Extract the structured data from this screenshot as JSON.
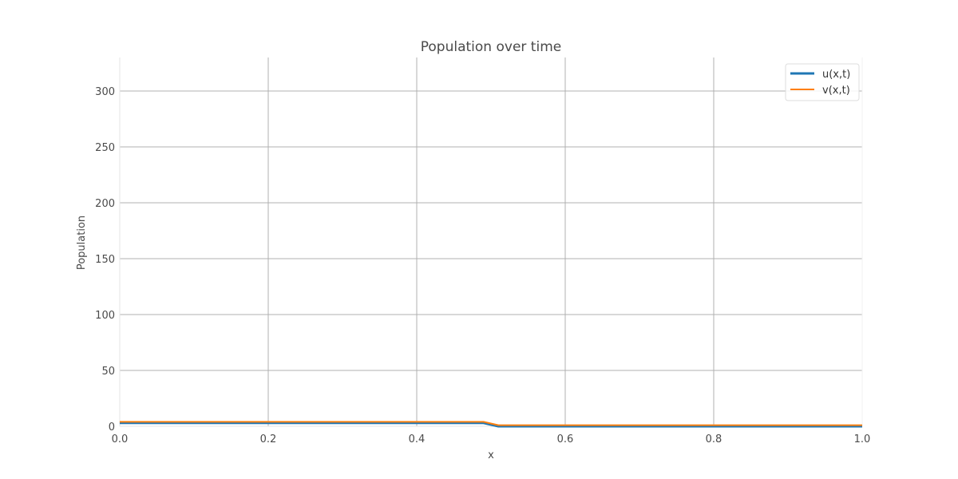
{
  "chart_data": {
    "type": "line",
    "title": "Population over time",
    "xlabel": "x",
    "ylabel": "Population",
    "xlim": [
      0.0,
      1.0
    ],
    "ylim": [
      0,
      330
    ],
    "xticks": [
      0.0,
      0.2,
      0.4,
      0.6,
      0.8,
      1.0
    ],
    "xtick_labels": [
      "0.0",
      "0.2",
      "0.4",
      "0.6",
      "0.8",
      "1.0"
    ],
    "yticks": [
      0,
      50,
      100,
      150,
      200,
      250,
      300
    ],
    "ytick_labels": [
      "0",
      "50",
      "100",
      "150",
      "200",
      "250",
      "300"
    ],
    "grid": true,
    "legend_position": "top-right",
    "series": [
      {
        "name": "u(x,t)",
        "color": "#1f77b4",
        "x": [
          0.0,
          0.1,
          0.2,
          0.3,
          0.4,
          0.49,
          0.51,
          0.6,
          0.7,
          0.8,
          0.9,
          1.0
        ],
        "y": [
          3,
          3,
          3,
          3,
          3,
          3,
          0,
          0,
          0,
          0,
          0,
          0
        ]
      },
      {
        "name": "v(x,t)",
        "color": "#ff7f0e",
        "x": [
          0.0,
          0.1,
          0.2,
          0.3,
          0.4,
          0.49,
          0.51,
          0.6,
          0.7,
          0.8,
          0.9,
          1.0
        ],
        "y": [
          4,
          4,
          4,
          4,
          4,
          4,
          1,
          1,
          1,
          1,
          1,
          1
        ]
      }
    ]
  }
}
